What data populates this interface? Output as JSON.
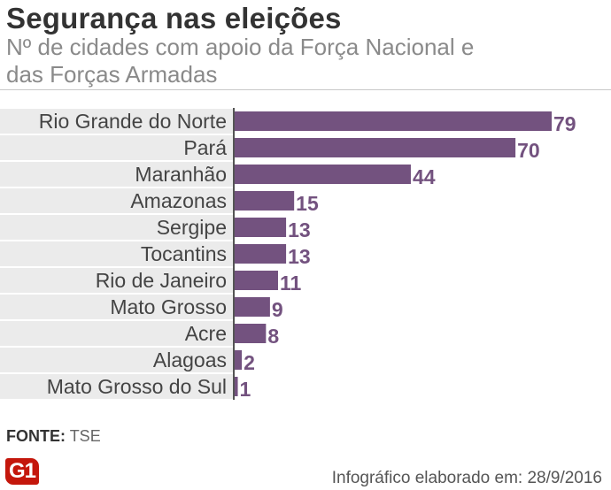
{
  "header": {
    "title": "Segurança nas eleições",
    "subtitle": "Nº de cidades com apoio da Força Nacional e das Forças Armadas"
  },
  "chart_data": {
    "type": "bar",
    "orientation": "horizontal",
    "title": "Segurança nas eleições",
    "subtitle": "Nº de cidades com apoio da Força Nacional e das Forças Armadas",
    "categories": [
      "Rio Grande do Norte",
      "Pará",
      "Maranhão",
      "Amazonas",
      "Sergipe",
      "Tocantins",
      "Rio de Janeiro",
      "Mato Grosso",
      "Acre",
      "Alagoas",
      "Mato Grosso do Sul"
    ],
    "values": [
      79,
      70,
      44,
      15,
      13,
      13,
      11,
      9,
      8,
      2,
      1
    ],
    "xlim": [
      0,
      79
    ],
    "xlabel": "",
    "ylabel": "",
    "grid": false,
    "bar_color": "#73527f",
    "label_color": "#73527f"
  },
  "footer": {
    "source_label": "FONTE:",
    "source_value": "TSE",
    "logo_text": "G1",
    "credit": "Infográfico elaborado em: 28/9/2016"
  },
  "colors": {
    "bar": "#73527f",
    "stripe": "#ebebeb",
    "logo": "#c4170c"
  }
}
